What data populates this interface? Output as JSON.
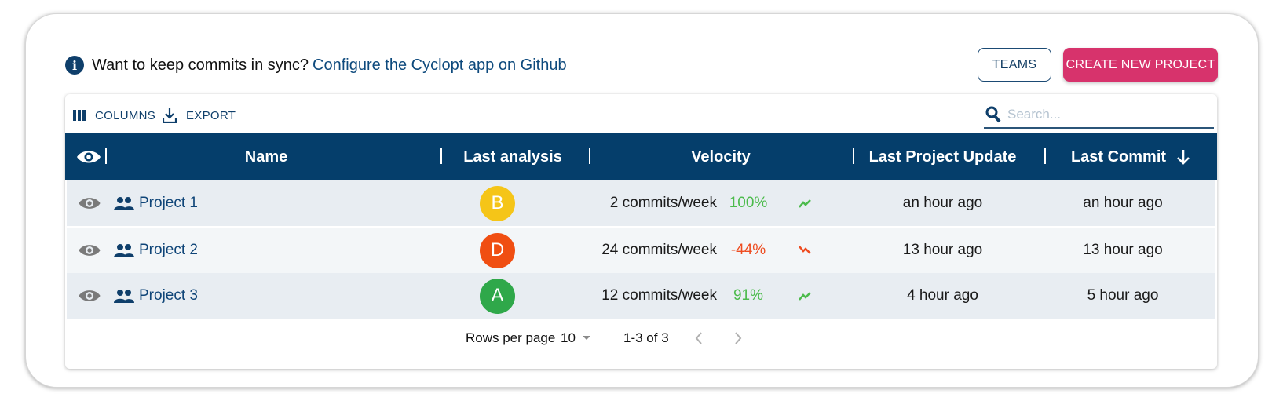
{
  "banner": {
    "icon": "info-icon",
    "text": "Want to keep commits in sync?",
    "link": "Configure the Cyclopt app on Github"
  },
  "buttons": {
    "teams": "TEAMS",
    "create": "CREATE NEW PROJECT"
  },
  "toolbar": {
    "columns": "COLUMNS",
    "export": "EXPORT",
    "search_placeholder": "Search..."
  },
  "columns": {
    "visibility_icon": "eye-icon",
    "name": "Name",
    "last_analysis": "Last analysis",
    "velocity": "Velocity",
    "last_project_update": "Last Project Update",
    "last_commit": "Last Commit",
    "sort_icon": "arrow-down-icon"
  },
  "rows": [
    {
      "name": "Project 1",
      "grade": "B",
      "grade_color": "#f5c518",
      "velocity": "2 commits/week",
      "change": "100%",
      "trend": "up",
      "last_update": "an hour ago",
      "last_commit": "an hour ago"
    },
    {
      "name": "Project 2",
      "grade": "D",
      "grade_color": "#f04e12",
      "velocity": "24 commits/week",
      "change": "-44%",
      "trend": "down",
      "last_update": "13 hour ago",
      "last_commit": "13 hour ago"
    },
    {
      "name": "Project 3",
      "grade": "A",
      "grade_color": "#2fa84a",
      "velocity": "12 commits/week",
      "change": "91%",
      "trend": "up",
      "last_update": "4 hour ago",
      "last_commit": "5 hour ago"
    }
  ],
  "footer": {
    "rows_per_page_label": "Rows per page",
    "rows_per_page": "10",
    "range": "1-3 of 3"
  },
  "colors": {
    "header": "#053e6b",
    "accent": "#d7336c",
    "link": "#0f4578"
  }
}
